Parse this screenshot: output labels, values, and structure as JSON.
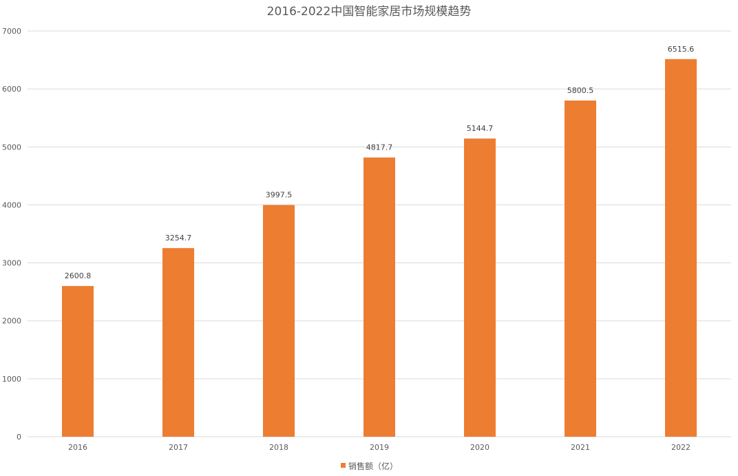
{
  "chart_data": {
    "type": "bar",
    "title": "2016-2022中国智能家居市场规模趋势",
    "categories": [
      "2016",
      "2017",
      "2018",
      "2019",
      "2020",
      "2021",
      "2022"
    ],
    "series": [
      {
        "name": "销售额（亿）",
        "values": [
          2600.8,
          3254.7,
          3997.5,
          4817.7,
          5144.7,
          5800.5,
          6515.6
        ],
        "data_labels": [
          "2600.8",
          "3254.7",
          "3997.5",
          "4817.7",
          "5144.7",
          "5800.5",
          "6515.6"
        ],
        "color": "#ed7d31"
      }
    ],
    "xlabel": "",
    "ylabel": "",
    "ylim": [
      0,
      7000
    ],
    "yticks": [
      "0",
      "1000",
      "2000",
      "3000",
      "4000",
      "5000",
      "6000",
      "7000"
    ],
    "grid": true,
    "legend_position": "bottom"
  }
}
